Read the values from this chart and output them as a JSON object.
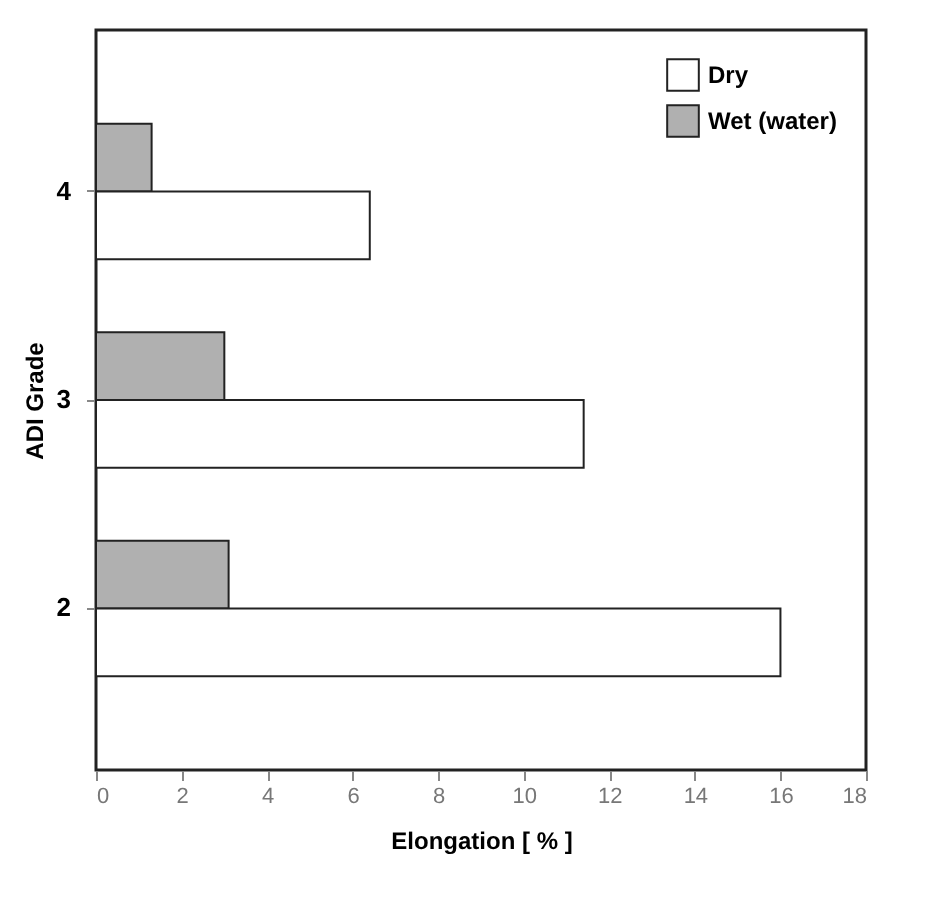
{
  "chart_data": {
    "type": "bar",
    "orientation": "horizontal",
    "xlabel": "Elongation [  %  ]",
    "ylabel": "ADI Grade",
    "categories": [
      "4",
      "3",
      "2"
    ],
    "series": [
      {
        "name": "Wet (water)",
        "color": "#b0b0b0",
        "values": [
          1.3,
          3.0,
          3.1
        ]
      },
      {
        "name": "Dry",
        "color": "#ffffff",
        "values": [
          6.4,
          11.4,
          16.0
        ]
      }
    ],
    "xlim": [
      0,
      18
    ],
    "xticks": [
      0,
      2,
      4,
      6,
      8,
      10,
      12,
      14,
      16,
      18
    ],
    "grid": false,
    "legend": "top right"
  }
}
